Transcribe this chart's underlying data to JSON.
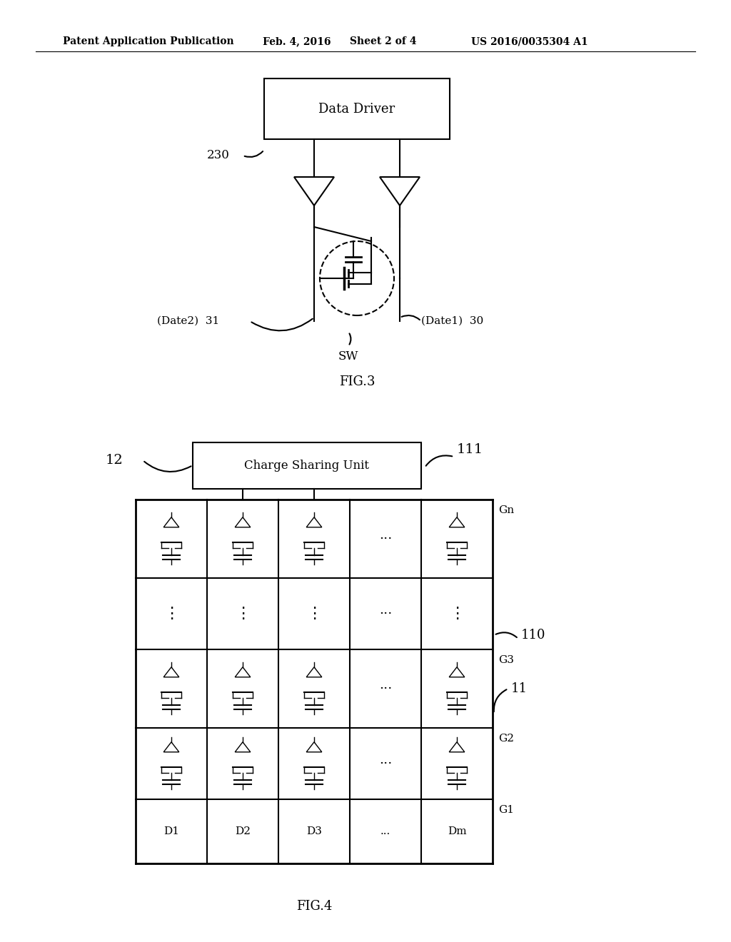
{
  "bg_color": "#ffffff",
  "line_color": "#000000",
  "header_text": "Patent Application Publication",
  "header_date": "Feb. 4, 2016",
  "header_sheet": "Sheet 2 of 4",
  "header_patent": "US 2016/0035304 A1",
  "fig3_label": "FIG.3",
  "fig4_label": "FIG.4",
  "data_driver_text": "Data Driver",
  "label_230": "230",
  "label_sw": "SW",
  "label_date1": "(Date1)  30",
  "label_date2": "(Date2)  31",
  "charge_sharing_text": "Charge Sharing Unit",
  "label_12": "12",
  "label_111": "111",
  "label_110": "110",
  "label_11": "11",
  "col_labels": [
    "D1",
    "D2",
    "D3",
    "...",
    "Dm"
  ],
  "row_labels_right": [
    "Gn",
    "G3",
    "G2",
    "G1"
  ]
}
